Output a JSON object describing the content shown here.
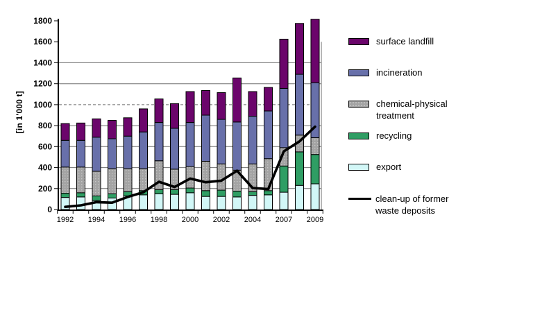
{
  "chart_data": {
    "type": "stacked-bar+line",
    "title": "",
    "ylabel": "[in 1'000 t]",
    "ylim": [
      0,
      1800
    ],
    "ytick_step": 200,
    "yticks": [
      0,
      200,
      400,
      600,
      800,
      1000,
      1200,
      1400,
      1600,
      1800
    ],
    "grid": "horizontal gridlines at 200-1600 (dashed at 1000, none at 1800)",
    "legend_position": "right",
    "categories": [
      "1992",
      "1993",
      "1994",
      "1995",
      "1996",
      "1997",
      "1998",
      "1999",
      "2000",
      "2001",
      "2002",
      "2003",
      "2004",
      "2005",
      "2007",
      "2008",
      "2009"
    ],
    "x_axis_labels_shown": [
      "1992",
      "1994",
      "1996",
      "1998",
      "2000",
      "2002",
      "2004",
      "2007",
      "2009"
    ],
    "series": [
      {
        "name": "export",
        "color": "#D2F7F7",
        "values": [
          115,
          120,
          85,
          110,
          130,
          140,
          150,
          145,
          160,
          125,
          125,
          120,
          135,
          140,
          165,
          230,
          245
        ]
      },
      {
        "name": "recycling",
        "color": "#2F9E64",
        "values": [
          40,
          40,
          45,
          40,
          40,
          40,
          40,
          45,
          45,
          55,
          60,
          55,
          35,
          40,
          250,
          320,
          280
        ]
      },
      {
        "name": "chemical-physical treatment",
        "color": "#A3A3A3",
        "dot_color": "#C6C6C6",
        "pattern": "dots",
        "values": [
          250,
          245,
          235,
          240,
          220,
          210,
          275,
          195,
          205,
          280,
          250,
          200,
          265,
          305,
          175,
          160,
          160
        ]
      },
      {
        "name": "incineration",
        "color": "#6870AA",
        "values": [
          255,
          255,
          325,
          285,
          310,
          350,
          365,
          390,
          420,
          440,
          425,
          460,
          455,
          455,
          565,
          580,
          525
        ]
      },
      {
        "name": "surface landfill",
        "color": "#6B056B",
        "values": [
          160,
          165,
          175,
          175,
          175,
          220,
          225,
          235,
          295,
          235,
          255,
          420,
          235,
          225,
          470,
          485,
          605
        ]
      }
    ],
    "line_series": {
      "name": "clean-up of former waste deposits",
      "color": "#000000",
      "values": [
        25,
        40,
        70,
        65,
        120,
        165,
        265,
        215,
        295,
        260,
        275,
        370,
        205,
        195,
        555,
        650,
        790
      ]
    }
  },
  "legend": {
    "items": [
      {
        "label": "surface landfill",
        "swatch": "fill",
        "color": "#6B056B"
      },
      {
        "label": "incineration",
        "swatch": "fill",
        "color": "#6870AA"
      },
      {
        "label": "chemical-physical treatment",
        "swatch": "dots",
        "color": "#A3A3A3",
        "dot_color": "#C6C6C6"
      },
      {
        "label": "recycling",
        "swatch": "fill",
        "color": "#2F9E64"
      },
      {
        "label": "export",
        "swatch": "fill",
        "color": "#D2F7F7"
      },
      {
        "label": "clean-up of former waste deposits",
        "swatch": "line",
        "color": "#000000"
      }
    ]
  }
}
